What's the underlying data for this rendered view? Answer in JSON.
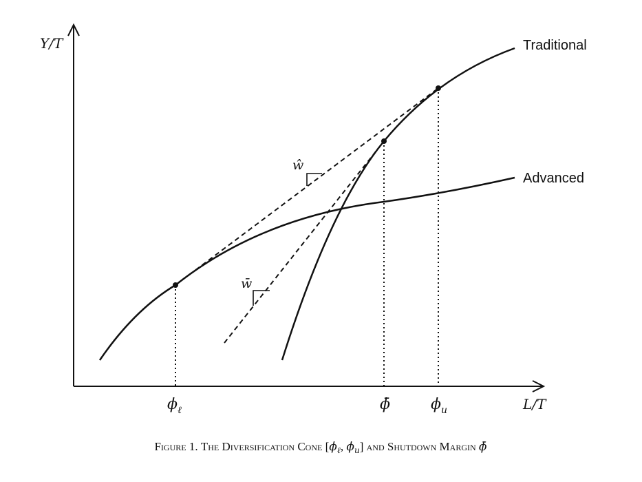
{
  "axes": {
    "y_label": "Y/T",
    "x_label": "L/T"
  },
  "curves": {
    "traditional": "Traditional",
    "advanced": "Advanced"
  },
  "wage_labels": {
    "w_hat": "ŵ",
    "w_bar": "w̄"
  },
  "tick_labels": {
    "phi_l": "ϕ",
    "phi_l_sub": "ℓ",
    "phi_bar": "ϕ̄",
    "phi_u": "ϕ",
    "phi_u_sub": "u"
  },
  "caption": {
    "figure_number": "Figure 1.",
    "title": "The Diversification Cone",
    "range_open": "[",
    "range_phi1": "ϕ",
    "range_sub1": "ℓ",
    "range_comma": ", ",
    "range_phi2": "ϕ",
    "range_sub2": "u",
    "range_close": "]",
    "and": "and",
    "rest": "Shutdown Margin",
    "phi_bar": "ϕ̄"
  },
  "colors": {
    "ink": "#111111",
    "background": "#ffffff"
  }
}
